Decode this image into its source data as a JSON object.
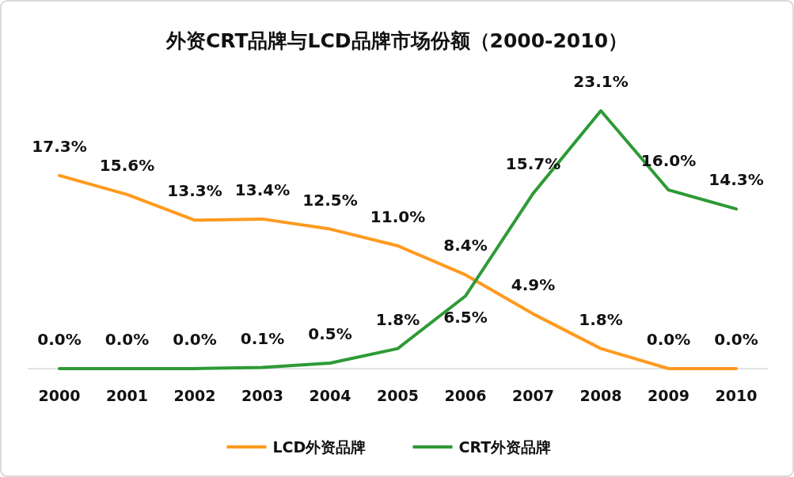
{
  "chart_data": {
    "type": "line",
    "title": "外资CRT品牌与LCD品牌市场份额（2000-2010）",
    "categories": [
      "2000",
      "2001",
      "2002",
      "2003",
      "2004",
      "2005",
      "2006",
      "2007",
      "2008",
      "2009",
      "2010"
    ],
    "series": [
      {
        "name": "LCD外资品牌",
        "color": "#ff9a1f",
        "values": [
          17.3,
          15.6,
          13.3,
          13.4,
          12.5,
          11.0,
          8.4,
          4.9,
          1.8,
          0.0,
          0.0
        ],
        "value_labels": [
          "17.3%",
          "15.6%",
          "13.3%",
          "13.4%",
          "12.5%",
          "11.0%",
          "8.4%",
          "4.9%",
          "1.8%",
          "0.0%",
          "0.0%"
        ]
      },
      {
        "name": "CRT外资品牌",
        "color": "#2e9a35",
        "values": [
          0.0,
          0.0,
          0.0,
          0.1,
          0.5,
          1.8,
          6.5,
          15.7,
          23.1,
          16.0,
          14.3
        ],
        "value_labels": [
          "0.0%",
          "0.0%",
          "0.0%",
          "0.1%",
          "0.5%",
          "1.8%",
          "6.5%",
          "15.7%",
          "23.1%",
          "16.0%",
          "14.3%"
        ]
      }
    ],
    "legend": "bottom",
    "marker": "none"
  }
}
